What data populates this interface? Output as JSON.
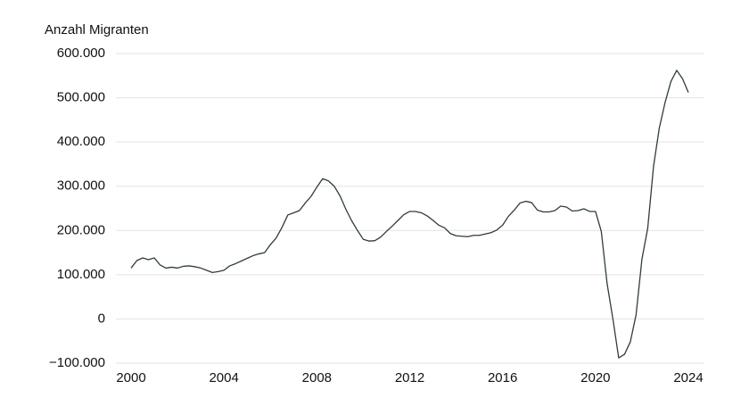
{
  "chart_data": {
    "type": "line",
    "y_label": "Anzahl Migranten",
    "x": [
      2000,
      2000.25,
      2000.5,
      2000.75,
      2001,
      2001.25,
      2001.5,
      2001.75,
      2002,
      2002.25,
      2002.5,
      2002.75,
      2003,
      2003.25,
      2003.5,
      2003.75,
      2004,
      2004.25,
      2004.5,
      2004.75,
      2005,
      2005.25,
      2005.5,
      2005.75,
      2006,
      2006.25,
      2006.5,
      2006.75,
      2007,
      2007.25,
      2007.5,
      2007.75,
      2008,
      2008.25,
      2008.5,
      2008.75,
      2009,
      2009.25,
      2009.5,
      2009.75,
      2010,
      2010.25,
      2010.5,
      2010.75,
      2011,
      2011.25,
      2011.5,
      2011.75,
      2012,
      2012.25,
      2012.5,
      2012.75,
      2013,
      2013.25,
      2013.5,
      2013.75,
      2014,
      2014.25,
      2014.5,
      2014.75,
      2015,
      2015.25,
      2015.5,
      2015.75,
      2016,
      2016.25,
      2016.5,
      2016.75,
      2017,
      2017.25,
      2017.5,
      2017.75,
      2018,
      2018.25,
      2018.5,
      2018.75,
      2019,
      2019.25,
      2019.5,
      2019.75,
      2020,
      2020.25,
      2020.5,
      2020.75,
      2021,
      2021.25,
      2021.5,
      2021.75,
      2022,
      2022.25,
      2022.5,
      2022.75,
      2023,
      2023.25,
      2023.5,
      2023.75,
      2024
    ],
    "series": [
      {
        "name": "Anzahl Migranten",
        "color": "#2f3d39",
        "values": [
          115000,
          132000,
          138000,
          134000,
          138000,
          122000,
          115000,
          117000,
          115000,
          119000,
          120000,
          118000,
          115000,
          110000,
          105000,
          107000,
          110000,
          120000,
          125000,
          131000,
          137000,
          143000,
          147000,
          150000,
          168000,
          183000,
          207000,
          235000,
          240000,
          245000,
          262000,
          277000,
          298000,
          317000,
          312000,
          300000,
          278000,
          248000,
          222000,
          200000,
          180000,
          176000,
          177000,
          185000,
          198000,
          210000,
          223000,
          236000,
          243000,
          243000,
          240000,
          233000,
          223000,
          212000,
          206000,
          193000,
          188000,
          187000,
          186000,
          189000,
          189000,
          192000,
          195000,
          201000,
          212000,
          232000,
          246000,
          262000,
          266000,
          263000,
          246000,
          242000,
          242000,
          245000,
          255000,
          253000,
          244000,
          245000,
          249000,
          243000,
          243000,
          198000,
          80000,
          0,
          -88000,
          -80000,
          -52000,
          10000,
          135000,
          205000,
          345000,
          432000,
          490000,
          537000,
          562000,
          543000,
          512000
        ]
      }
    ],
    "xlim": [
      2000,
      2024
    ],
    "xticks": [
      2000,
      2004,
      2008,
      2012,
      2016,
      2020,
      2024
    ],
    "ylim": [
      -100000,
      600000
    ],
    "yticks": [
      {
        "value": -100000,
        "label": "−100.000"
      },
      0,
      {
        "value": 100000,
        "label": "100.000"
      },
      {
        "value": 200000,
        "label": "200.000"
      },
      {
        "value": 300000,
        "label": "300.000"
      },
      {
        "value": 400000,
        "label": "400.000"
      },
      {
        "value": 500000,
        "label": "500.000"
      },
      {
        "value": 600000,
        "label": "600.000"
      }
    ],
    "grid": true
  }
}
